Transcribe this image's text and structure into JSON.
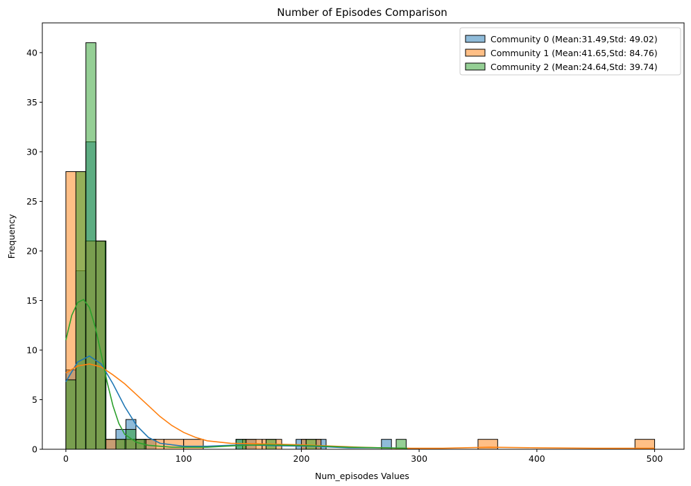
{
  "chart_data": {
    "type": "histogram",
    "title": "Number of Episodes Comparison",
    "xlabel": "Num_episodes Values",
    "ylabel": "Frequency",
    "xlim": [
      -20,
      525
    ],
    "ylim": [
      0,
      43
    ],
    "xticks": [
      0,
      100,
      200,
      300,
      400,
      500
    ],
    "yticks": [
      0,
      5,
      10,
      15,
      20,
      25,
      30,
      35,
      40
    ],
    "legend_position": "top-right",
    "series": [
      {
        "name": "Community 0 (Mean:31.49,Std: 49.02)",
        "color": "#1f77b4",
        "bins": [
          {
            "x0": 0,
            "x1": 8.5,
            "count": 8
          },
          {
            "x0": 8.5,
            "x1": 17,
            "count": 18
          },
          {
            "x0": 17,
            "x1": 25.5,
            "count": 31
          },
          {
            "x0": 25.5,
            "x1": 34,
            "count": 21
          },
          {
            "x0": 34,
            "x1": 42.5,
            "count": 1
          },
          {
            "x0": 42.5,
            "x1": 51,
            "count": 2
          },
          {
            "x0": 51,
            "x1": 59.5,
            "count": 3
          },
          {
            "x0": 59.5,
            "x1": 68,
            "count": 1
          },
          {
            "x0": 68,
            "x1": 76.5,
            "count": 1
          },
          {
            "x0": 144.5,
            "x1": 153,
            "count": 1
          },
          {
            "x0": 153,
            "x1": 161.5,
            "count": 1
          },
          {
            "x0": 195.5,
            "x1": 204,
            "count": 1
          },
          {
            "x0": 212.5,
            "x1": 221,
            "count": 1
          },
          {
            "x0": 268,
            "x1": 276.5,
            "count": 1
          }
        ],
        "kde": [
          [
            0,
            6.8
          ],
          [
            10,
            8.8
          ],
          [
            20,
            9.4
          ],
          [
            30,
            8.6
          ],
          [
            40,
            6.6
          ],
          [
            50,
            4.3
          ],
          [
            60,
            2.4
          ],
          [
            70,
            1.2
          ],
          [
            80,
            0.6
          ],
          [
            100,
            0.3
          ],
          [
            120,
            0.3
          ],
          [
            150,
            0.45
          ],
          [
            180,
            0.35
          ],
          [
            210,
            0.3
          ],
          [
            240,
            0.15
          ],
          [
            270,
            0.15
          ],
          [
            290,
            0.1
          ],
          [
            300,
            0.05
          ]
        ]
      },
      {
        "name": "Community 1 (Mean:41.65,Std: 84.76)",
        "color": "#ff7f0e",
        "bins": [
          {
            "x0": 0,
            "x1": 16.7,
            "count": 28
          },
          {
            "x0": 16.7,
            "x1": 33.3,
            "count": 21
          },
          {
            "x0": 33.3,
            "x1": 50,
            "count": 1
          },
          {
            "x0": 50,
            "x1": 66.7,
            "count": 1
          },
          {
            "x0": 66.7,
            "x1": 83.3,
            "count": 1
          },
          {
            "x0": 83.3,
            "x1": 100,
            "count": 1
          },
          {
            "x0": 100,
            "x1": 116.7,
            "count": 1
          },
          {
            "x0": 150,
            "x1": 166.7,
            "count": 1
          },
          {
            "x0": 166.7,
            "x1": 183.3,
            "count": 1
          },
          {
            "x0": 200,
            "x1": 216.7,
            "count": 1
          },
          {
            "x0": 350,
            "x1": 366.7,
            "count": 1
          },
          {
            "x0": 483.3,
            "x1": 500,
            "count": 1
          }
        ],
        "kde": [
          [
            0,
            7.7
          ],
          [
            10,
            8.4
          ],
          [
            20,
            8.6
          ],
          [
            30,
            8.3
          ],
          [
            40,
            7.5
          ],
          [
            50,
            6.6
          ],
          [
            60,
            5.5
          ],
          [
            70,
            4.4
          ],
          [
            80,
            3.3
          ],
          [
            90,
            2.4
          ],
          [
            100,
            1.7
          ],
          [
            110,
            1.2
          ],
          [
            120,
            0.85
          ],
          [
            140,
            0.6
          ],
          [
            160,
            0.55
          ],
          [
            180,
            0.5
          ],
          [
            200,
            0.45
          ],
          [
            220,
            0.35
          ],
          [
            250,
            0.2
          ],
          [
            280,
            0.1
          ],
          [
            320,
            0.1
          ],
          [
            360,
            0.2
          ],
          [
            400,
            0.15
          ],
          [
            450,
            0.1
          ],
          [
            500,
            0.1
          ]
        ]
      },
      {
        "name": "Community 2 (Mean:24.64,Std: 39.74)",
        "color": "#2ca02c",
        "bins": [
          {
            "x0": 0,
            "x1": 8.5,
            "count": 7
          },
          {
            "x0": 8.5,
            "x1": 17,
            "count": 28
          },
          {
            "x0": 17,
            "x1": 25.5,
            "count": 41
          },
          {
            "x0": 25.5,
            "x1": 34,
            "count": 21
          },
          {
            "x0": 34,
            "x1": 42.5,
            "count": 0
          },
          {
            "x0": 42.5,
            "x1": 51,
            "count": 1
          },
          {
            "x0": 51,
            "x1": 59.5,
            "count": 2
          },
          {
            "x0": 59.5,
            "x1": 68,
            "count": 1
          },
          {
            "x0": 144.5,
            "x1": 153,
            "count": 1
          },
          {
            "x0": 170,
            "x1": 178.5,
            "count": 1
          },
          {
            "x0": 204,
            "x1": 212.5,
            "count": 1
          },
          {
            "x0": 280.5,
            "x1": 289,
            "count": 1
          }
        ],
        "kde": [
          [
            0,
            11
          ],
          [
            5,
            13.5
          ],
          [
            10,
            14.8
          ],
          [
            15,
            15.1
          ],
          [
            20,
            14.3
          ],
          [
            25,
            12.3
          ],
          [
            30,
            9.6
          ],
          [
            35,
            6.8
          ],
          [
            40,
            4.4
          ],
          [
            45,
            2.6
          ],
          [
            50,
            1.5
          ],
          [
            60,
            0.7
          ],
          [
            70,
            0.4
          ],
          [
            90,
            0.2
          ],
          [
            120,
            0.2
          ],
          [
            150,
            0.4
          ],
          [
            170,
            0.45
          ],
          [
            190,
            0.4
          ],
          [
            210,
            0.35
          ],
          [
            240,
            0.2
          ],
          [
            270,
            0.15
          ],
          [
            290,
            0.1
          ]
        ]
      }
    ]
  }
}
